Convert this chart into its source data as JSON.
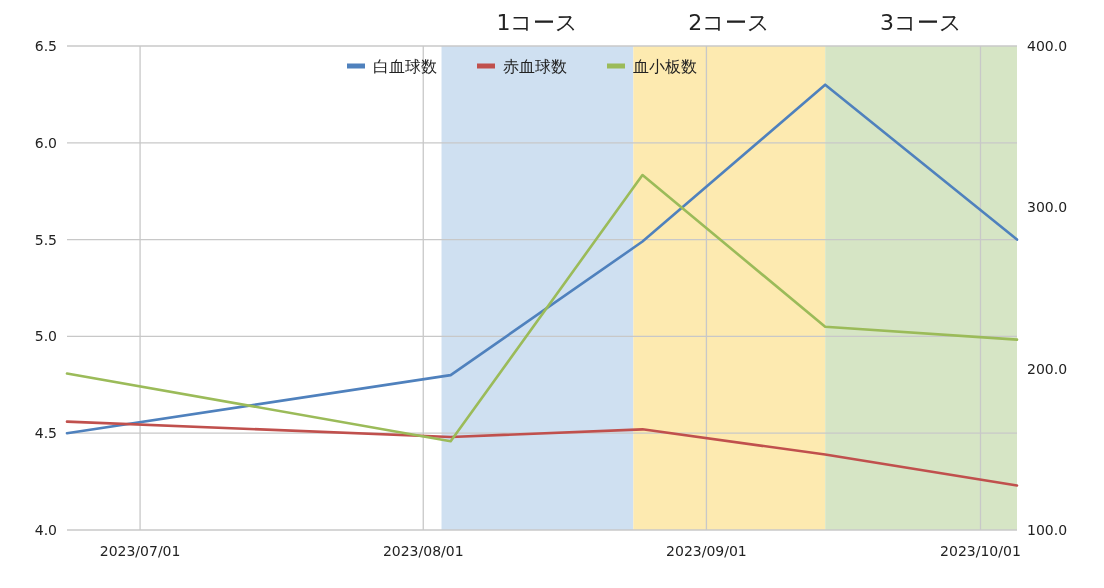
{
  "chart_data": {
    "type": "line",
    "x": [
      "2023-06-23",
      "2023-08-04",
      "2023-08-25",
      "2023-09-14",
      "2023-10-05"
    ],
    "series": [
      {
        "name": "白血球数",
        "color": "#4f81bd",
        "values": [
          4.5,
          4.8,
          5.49,
          6.3,
          5.5
        ]
      },
      {
        "name": "赤血球数",
        "color": "#c0504d",
        "values": [
          4.56,
          4.48,
          4.52,
          4.39,
          4.23
        ]
      },
      {
        "name": "血小板数",
        "color": "#9bbb59",
        "axis": "y2",
        "values": [
          197,
          155,
          320,
          226,
          218
        ]
      }
    ],
    "xlim": [
      "2023-06-23",
      "2023-10-05"
    ],
    "xticks": [
      {
        "value": "2023-07-01",
        "label": "2023/07/01"
      },
      {
        "value": "2023-08-01",
        "label": "2023/08/01"
      },
      {
        "value": "2023-09-01",
        "label": "2023/09/01"
      },
      {
        "value": "2023-10-01",
        "label": "2023/10/01"
      }
    ],
    "ylim": [
      4.0,
      6.5
    ],
    "yticks": [
      {
        "value": 4.0,
        "label": "4.0"
      },
      {
        "value": 4.5,
        "label": "4.5"
      },
      {
        "value": 5.0,
        "label": "5.0"
      },
      {
        "value": 5.5,
        "label": "5.5"
      },
      {
        "value": 6.0,
        "label": "6.0"
      },
      {
        "value": 6.5,
        "label": "6.5"
      }
    ],
    "y2lim": [
      100,
      400
    ],
    "y2ticks": [
      {
        "value": 100,
        "label": "100.0"
      },
      {
        "value": 200,
        "label": "200.0"
      },
      {
        "value": 300,
        "label": "300.0"
      },
      {
        "value": 400,
        "label": "400.0"
      }
    ],
    "bands": [
      {
        "axis": "x",
        "from": "2023-08-03",
        "to": "2023-08-24",
        "label": "1コース",
        "color": "#cfe0f1"
      },
      {
        "axis": "x",
        "from": "2023-08-24",
        "to": "2023-09-14",
        "label": "2コース",
        "color": "#fdeab0"
      },
      {
        "axis": "x",
        "from": "2023-09-14",
        "to": "2023-10-05",
        "label": "3コース",
        "color": "#d6e5c5"
      }
    ],
    "grid": true,
    "legend": "top"
  }
}
